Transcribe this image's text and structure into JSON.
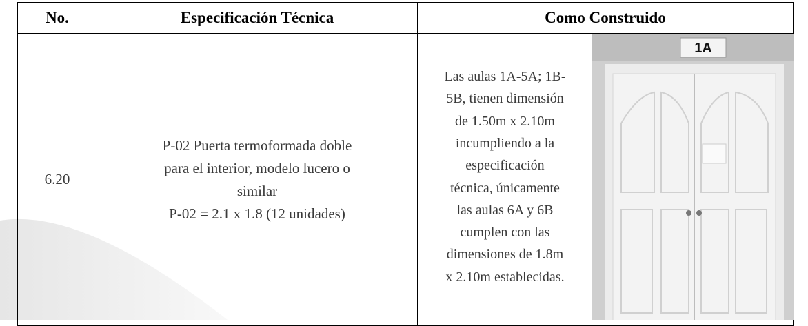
{
  "table": {
    "headers": [
      "No.",
      "Especificación Técnica",
      "Como Construido"
    ],
    "rows": [
      {
        "number": "6.20",
        "specification": [
          "P-02 Puerta termoformada doble",
          "para el interior, modelo lucero o",
          "similar",
          "P-02 = 2.1 x 1.8 (12 unidades)"
        ],
        "as_built": [
          "Las aulas 1A-5A; 1B-",
          "5B, tienen dimensión",
          "de 1.50m x 2.10m",
          "incumpliendo a la",
          "especificación",
          "técnica, únicamente",
          "las aulas 6A y 6B",
          "cumplen con las",
          "dimensiones de 1.8m",
          "x 2.10m establecidas."
        ],
        "photo_sign": "1A"
      }
    ]
  }
}
